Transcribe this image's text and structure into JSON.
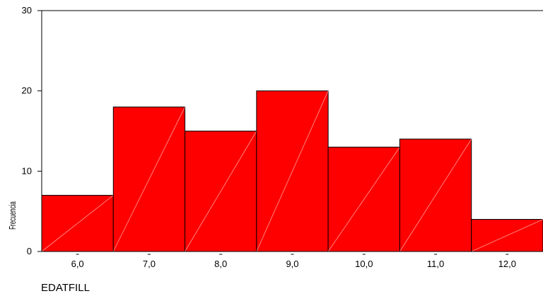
{
  "chart_data": {
    "type": "bar",
    "categories": [
      "6,0",
      "7,0",
      "8,0",
      "9,0",
      "10,0",
      "11,0",
      "12,0"
    ],
    "values": [
      7,
      18,
      15,
      20,
      13,
      14,
      4
    ],
    "yticks": [
      "0",
      "10",
      "20",
      "30"
    ],
    "ylim": [
      0,
      30
    ],
    "xlabel": "EDATFILL",
    "ylabel": "Frecuencia",
    "bar_color": "#ff0000",
    "grid": false
  }
}
